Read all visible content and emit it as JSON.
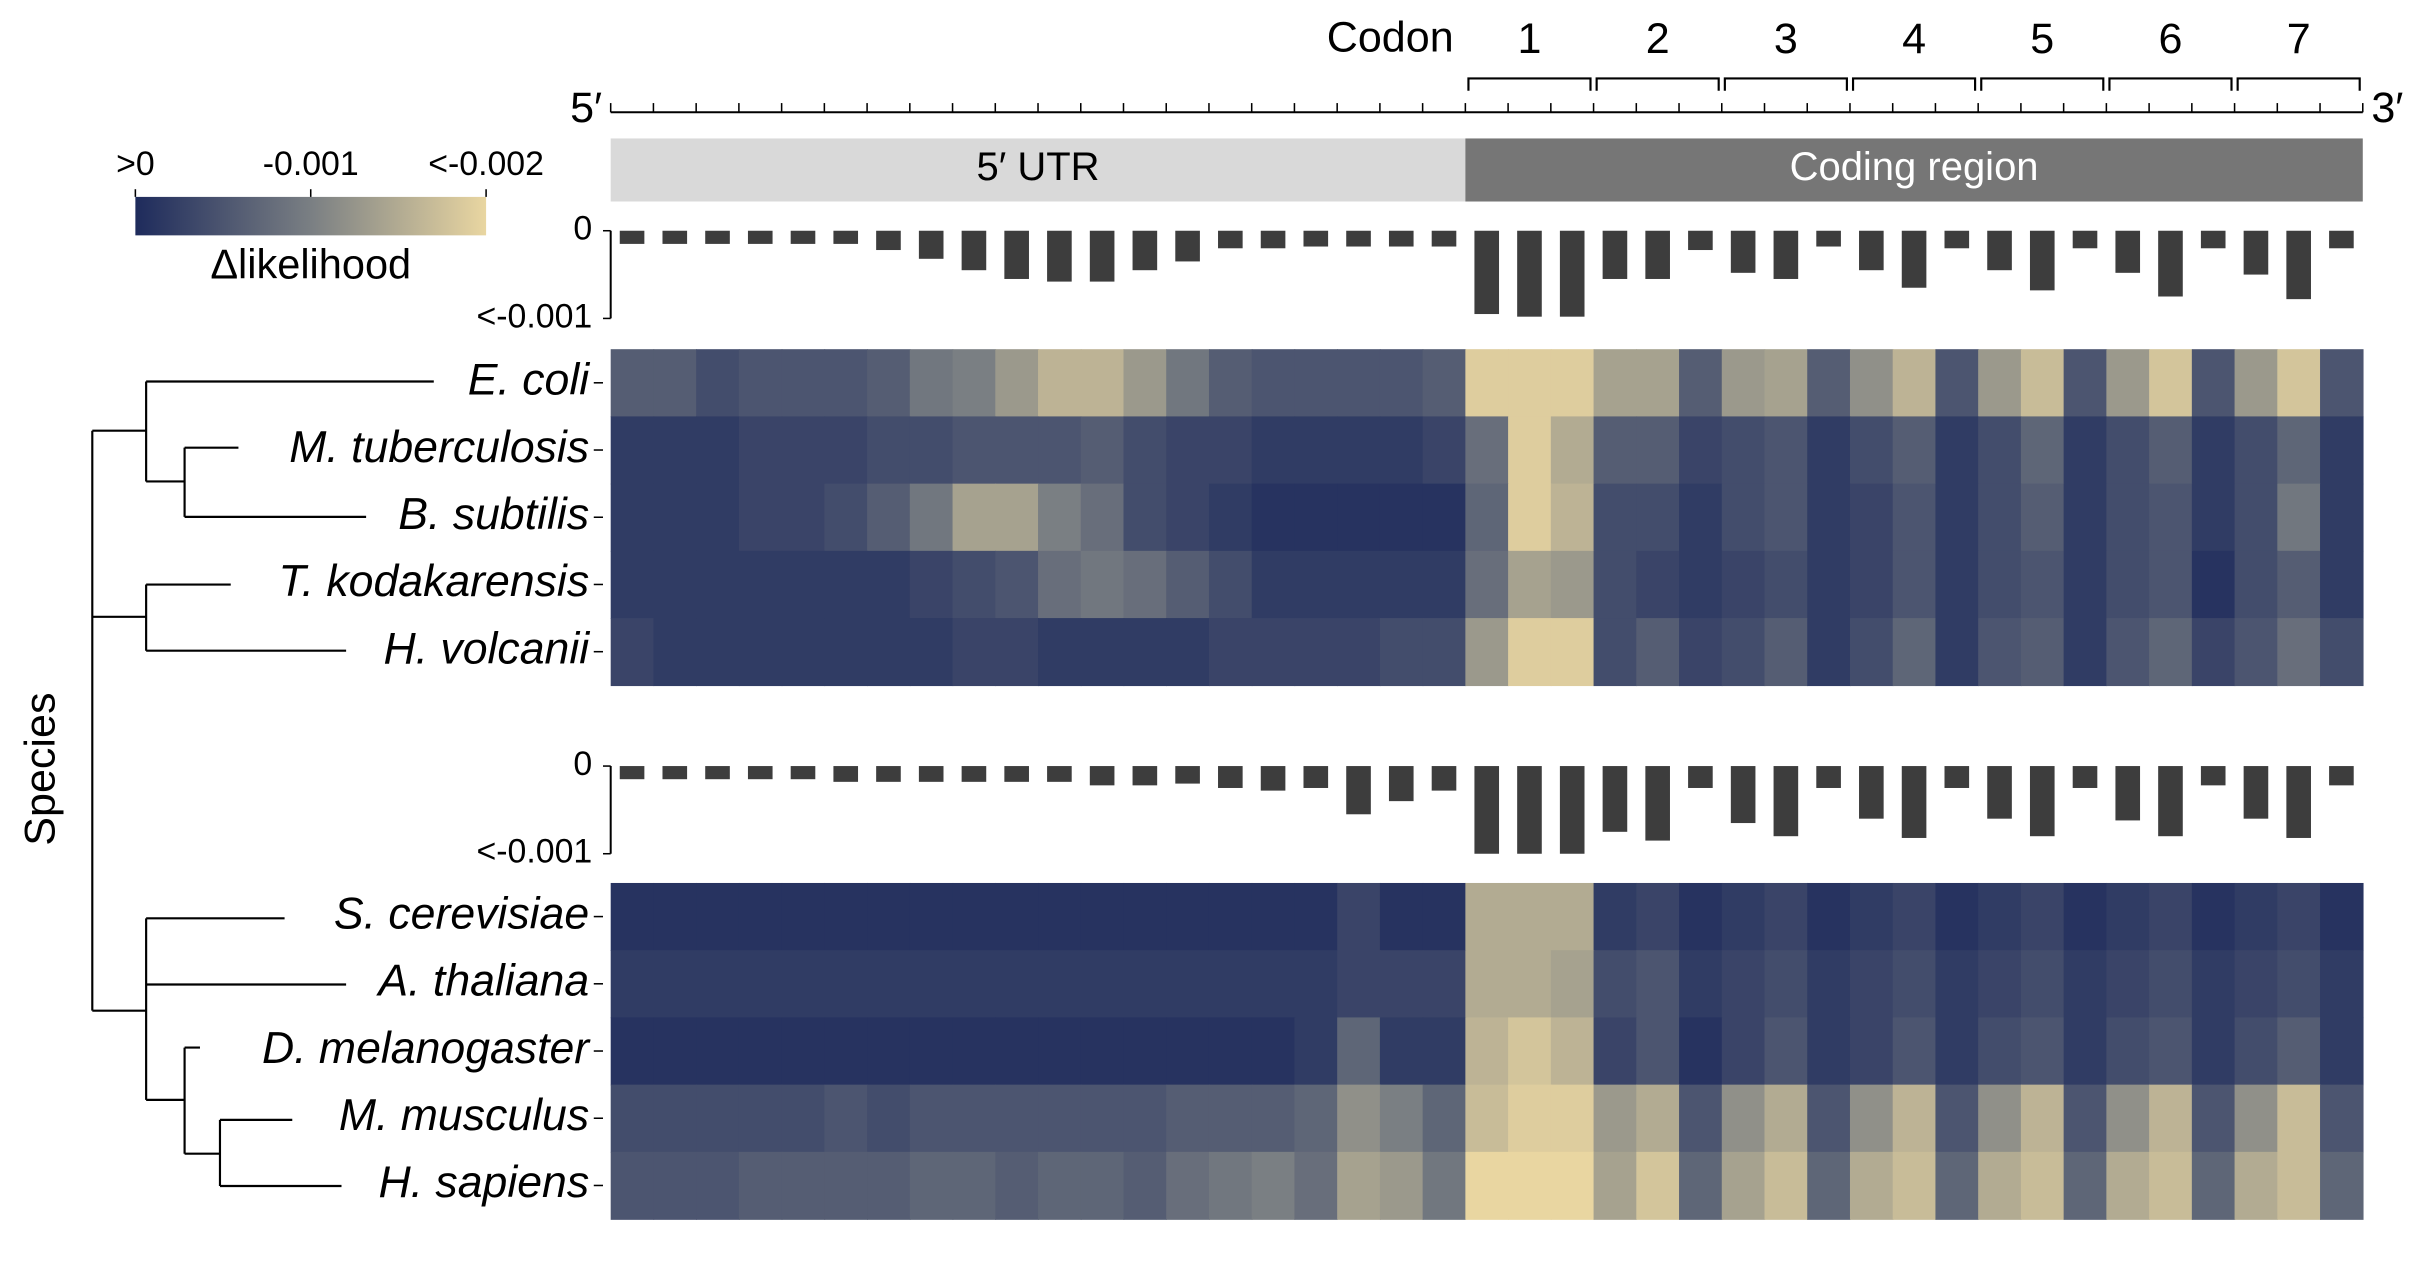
{
  "chart_data": {
    "type": "heatmap",
    "codon_label": "Codon",
    "codons": [
      "1",
      "2",
      "3",
      "4",
      "5",
      "6",
      "7"
    ],
    "five_prime": "5′",
    "three_prime": "3′",
    "regions": [
      "5′ UTR",
      "Coding region"
    ],
    "y_label": "Species",
    "colorbar": {
      "label": "Δlikelihood",
      "lim": [
        0,
        -0.002
      ],
      "ticks": [
        {
          "value": 0,
          "label": ">0"
        },
        -0.001,
        {
          "value": -0.002,
          "label": "<-0.002"
        }
      ],
      "colors": [
        "#1e2b5c",
        "#7a7f83",
        "#e9d6a1"
      ]
    },
    "groups": [
      {
        "bars": {
          "color": "#3d3d3d",
          "ylim": [
            0,
            -0.001
          ],
          "yticks": [
            0,
            {
              "value": -0.001,
              "label": "<-0.001"
            }
          ],
          "values": [
            -0.00015,
            -0.00015,
            -0.00015,
            -0.00015,
            -0.00015,
            -0.00015,
            -0.00022,
            -0.00032,
            -0.00045,
            -0.00055,
            -0.00058,
            -0.00058,
            -0.00045,
            -0.00035,
            -0.0002,
            -0.0002,
            -0.00018,
            -0.00018,
            -0.00018,
            -0.00018,
            -0.00095,
            -0.00098,
            -0.00098,
            -0.00055,
            -0.00055,
            -0.00022,
            -0.00048,
            -0.00055,
            -0.00018,
            -0.00045,
            -0.00065,
            -0.0002,
            -0.00045,
            -0.00068,
            -0.0002,
            -0.00048,
            -0.00075,
            -0.0002,
            -0.0005,
            -0.00078,
            -0.0002
          ]
        },
        "species": [
          {
            "name": "E. coli",
            "values": [
              -0.0006,
              -0.0006,
              -0.0004,
              -0.0005,
              -0.0005,
              -0.0005,
              -0.0006,
              -0.0009,
              -0.001,
              -0.0013,
              -0.0016,
              -0.0016,
              -0.0013,
              -0.0009,
              -0.0006,
              -0.0005,
              -0.0005,
              -0.0005,
              -0.0005,
              -0.0006,
              -0.0019,
              -0.0019,
              -0.0019,
              -0.0014,
              -0.0014,
              -0.0006,
              -0.0013,
              -0.0014,
              -0.0006,
              -0.0012,
              -0.0016,
              -0.0005,
              -0.0013,
              -0.0017,
              -0.0005,
              -0.0013,
              -0.0018,
              -0.0005,
              -0.0013,
              -0.0018,
              -0.0005
            ]
          },
          {
            "name": "M. tuberculosis",
            "values": [
              -0.0002,
              -0.0002,
              -0.0002,
              -0.0003,
              -0.0003,
              -0.0003,
              -0.0004,
              -0.0004,
              -0.0005,
              -0.0005,
              -0.0005,
              -0.0006,
              -0.0004,
              -0.0003,
              -0.0003,
              -0.0002,
              -0.0002,
              -0.0002,
              -0.0002,
              -0.0003,
              -0.0008,
              -0.0019,
              -0.0015,
              -0.0006,
              -0.0006,
              -0.0003,
              -0.0004,
              -0.0005,
              -0.0002,
              -0.0004,
              -0.0006,
              -0.0002,
              -0.0004,
              -0.0007,
              -0.0002,
              -0.0004,
              -0.0006,
              -0.0002,
              -0.0004,
              -0.0007,
              -0.0002
            ]
          },
          {
            "name": "B. subtilis",
            "values": [
              -0.0002,
              -0.0002,
              -0.0002,
              -0.0003,
              -0.0003,
              -0.0004,
              -0.0006,
              -0.0009,
              -0.0014,
              -0.0014,
              -0.001,
              -0.0008,
              -0.0004,
              -0.0003,
              -0.0002,
              -0.0001,
              -0.0001,
              -0.0001,
              -0.0001,
              -0.0001,
              -0.0007,
              -0.0019,
              -0.0016,
              -0.0004,
              -0.0004,
              -0.0002,
              -0.0004,
              -0.0005,
              -0.0002,
              -0.0003,
              -0.0005,
              -0.0002,
              -0.0004,
              -0.0006,
              -0.0002,
              -0.0004,
              -0.0005,
              -0.0002,
              -0.0004,
              -0.0009,
              -0.0002
            ]
          },
          {
            "name": "T. kodakarensis",
            "values": [
              -0.0002,
              -0.0002,
              -0.0002,
              -0.0002,
              -0.0002,
              -0.0002,
              -0.0002,
              -0.0003,
              -0.0004,
              -0.0005,
              -0.0008,
              -0.0009,
              -0.0008,
              -0.0006,
              -0.0004,
              -0.0002,
              -0.0002,
              -0.0002,
              -0.0002,
              -0.0002,
              -0.0008,
              -0.0014,
              -0.0013,
              -0.0004,
              -0.0003,
              -0.0002,
              -0.0003,
              -0.0004,
              -0.0002,
              -0.0003,
              -0.0005,
              -0.0002,
              -0.0004,
              -0.0005,
              -0.0002,
              -0.0004,
              -0.0005,
              -0.0001,
              -0.0004,
              -0.0006,
              -0.0002
            ]
          },
          {
            "name": "H. volcanii",
            "values": [
              -0.0003,
              -0.0002,
              -0.0002,
              -0.0002,
              -0.0002,
              -0.0002,
              -0.0002,
              -0.0002,
              -0.0003,
              -0.0003,
              -0.0002,
              -0.0002,
              -0.0002,
              -0.0002,
              -0.0003,
              -0.0003,
              -0.0003,
              -0.0003,
              -0.0004,
              -0.0004,
              -0.0013,
              -0.0019,
              -0.0019,
              -0.0004,
              -0.0006,
              -0.0003,
              -0.0004,
              -0.0006,
              -0.0002,
              -0.0004,
              -0.0007,
              -0.0002,
              -0.0005,
              -0.0006,
              -0.0002,
              -0.0005,
              -0.0007,
              -0.0003,
              -0.0005,
              -0.0008,
              -0.0004
            ]
          }
        ]
      },
      {
        "bars": {
          "color": "#3d3d3d",
          "ylim": [
            0,
            -0.001
          ],
          "yticks": [
            0,
            {
              "value": -0.001,
              "label": "<-0.001"
            }
          ],
          "values": [
            -0.00015,
            -0.00015,
            -0.00015,
            -0.00015,
            -0.00015,
            -0.00018,
            -0.00018,
            -0.00018,
            -0.00018,
            -0.00018,
            -0.00018,
            -0.00022,
            -0.00022,
            -0.0002,
            -0.00025,
            -0.00028,
            -0.00025,
            -0.00055,
            -0.0004,
            -0.00028,
            -0.001,
            -0.001,
            -0.001,
            -0.00075,
            -0.00085,
            -0.00025,
            -0.00065,
            -0.0008,
            -0.00025,
            -0.0006,
            -0.00082,
            -0.00025,
            -0.0006,
            -0.0008,
            -0.00025,
            -0.00062,
            -0.0008,
            -0.00022,
            -0.0006,
            -0.00082,
            -0.00022
          ]
        },
        "species": [
          {
            "name": "S. cerevisiae",
            "values": [
              -0.0001,
              -0.0001,
              -0.0001,
              -0.0001,
              -0.0001,
              -0.0001,
              -0.0001,
              -0.0001,
              -0.0001,
              -0.0001,
              -0.0001,
              -0.0001,
              -0.0001,
              -0.0001,
              -0.0001,
              -0.0001,
              -0.0001,
              -0.0003,
              -0.0001,
              -0.0001,
              -0.0015,
              -0.0015,
              -0.0015,
              -0.0002,
              -0.0003,
              -0.0001,
              -0.0002,
              -0.0003,
              -0.0001,
              -0.0002,
              -0.0003,
              -0.0001,
              -0.0002,
              -0.0003,
              -0.0001,
              -0.0002,
              -0.0003,
              -0.0001,
              -0.0002,
              -0.0003,
              -0.0001
            ]
          },
          {
            "name": "A. thaliana",
            "values": [
              -0.0002,
              -0.0002,
              -0.0002,
              -0.0002,
              -0.0002,
              -0.0002,
              -0.0002,
              -0.0002,
              -0.0002,
              -0.0002,
              -0.0002,
              -0.0002,
              -0.0002,
              -0.0002,
              -0.0002,
              -0.0002,
              -0.0002,
              -0.0003,
              -0.0003,
              -0.0003,
              -0.0015,
              -0.0015,
              -0.0014,
              -0.0004,
              -0.0005,
              -0.0002,
              -0.0003,
              -0.0004,
              -0.0002,
              -0.0003,
              -0.0004,
              -0.0002,
              -0.0003,
              -0.0004,
              -0.0002,
              -0.0003,
              -0.0004,
              -0.0002,
              -0.0003,
              -0.0004,
              -0.0002
            ]
          },
          {
            "name": "D. melanogaster",
            "values": [
              -0.0001,
              -0.0001,
              -0.0001,
              -0.0001,
              -0.0001,
              -0.0001,
              -0.0001,
              -0.0001,
              -0.0001,
              -0.0001,
              -0.0001,
              -0.0001,
              -0.0001,
              -0.0001,
              -0.0001,
              -0.0001,
              -0.0002,
              -0.0007,
              -0.0002,
              -0.0002,
              -0.0016,
              -0.0018,
              -0.0016,
              -0.0003,
              -0.0005,
              -0.0001,
              -0.0003,
              -0.0005,
              -0.0002,
              -0.0003,
              -0.0005,
              -0.0002,
              -0.0004,
              -0.0005,
              -0.0002,
              -0.0004,
              -0.0005,
              -0.0002,
              -0.0004,
              -0.0006,
              -0.0002
            ]
          },
          {
            "name": "M. musculus",
            "values": [
              -0.0004,
              -0.0004,
              -0.0004,
              -0.0004,
              -0.0004,
              -0.0005,
              -0.0004,
              -0.0005,
              -0.0005,
              -0.0005,
              -0.0005,
              -0.0005,
              -0.0005,
              -0.0006,
              -0.0006,
              -0.0006,
              -0.0007,
              -0.0012,
              -0.001,
              -0.0007,
              -0.0017,
              -0.0019,
              -0.0019,
              -0.0013,
              -0.0015,
              -0.0005,
              -0.0012,
              -0.0015,
              -0.0005,
              -0.0012,
              -0.0016,
              -0.0005,
              -0.0012,
              -0.0016,
              -0.0005,
              -0.0012,
              -0.0016,
              -0.0005,
              -0.0012,
              -0.0017,
              -0.0005
            ]
          },
          {
            "name": "H. sapiens",
            "values": [
              -0.0005,
              -0.0005,
              -0.0005,
              -0.0006,
              -0.0006,
              -0.0006,
              -0.0006,
              -0.0007,
              -0.0007,
              -0.0006,
              -0.0007,
              -0.0007,
              -0.0006,
              -0.0008,
              -0.0009,
              -0.001,
              -0.0008,
              -0.0014,
              -0.0013,
              -0.0009,
              -0.002,
              -0.002,
              -0.002,
              -0.0014,
              -0.0018,
              -0.0007,
              -0.0014,
              -0.0017,
              -0.0007,
              -0.0015,
              -0.0017,
              -0.0007,
              -0.0015,
              -0.0017,
              -0.0007,
              -0.0015,
              -0.0017,
              -0.0007,
              -0.0015,
              -0.0017,
              -0.0007
            ]
          }
        ]
      }
    ]
  }
}
